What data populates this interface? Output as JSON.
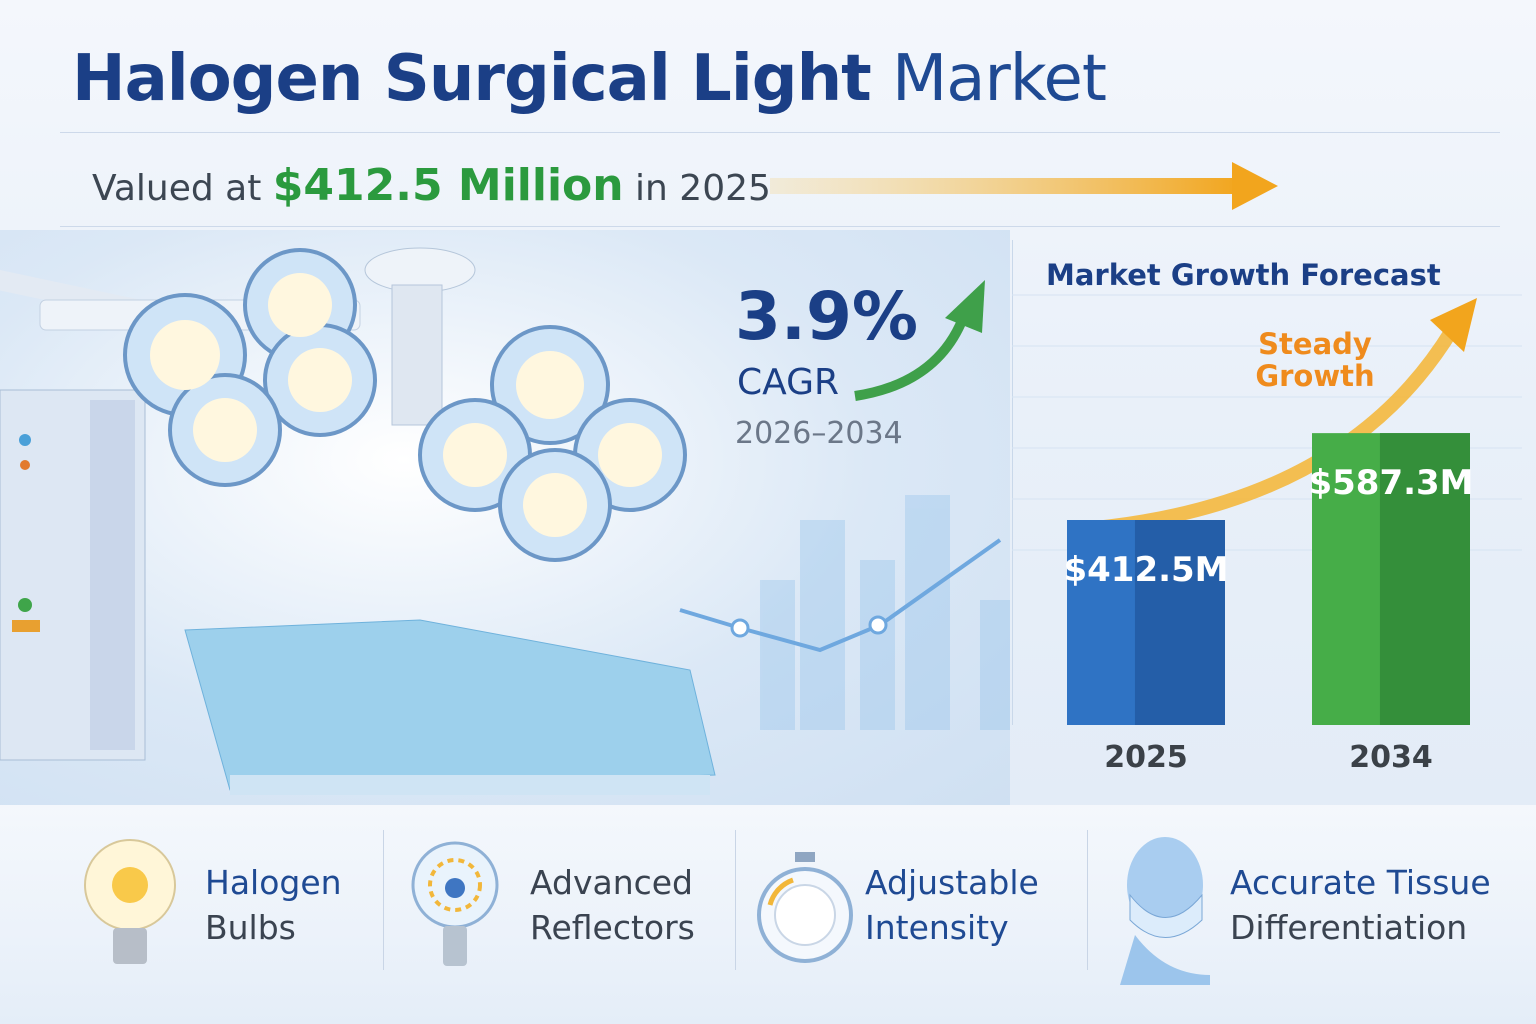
{
  "header": {
    "title_bold": "Halogen Surgical Light",
    "title_light": "Market"
  },
  "valuation": {
    "prefix": "Valued at",
    "amount": "$412.5 Million",
    "suffix": "in 2025"
  },
  "cagr": {
    "value": "3.9%",
    "label": "CAGR",
    "period": "2026–2034"
  },
  "chart_data": {
    "type": "bar",
    "title": "Market Growth Forecast",
    "categories": [
      "2025",
      "2034"
    ],
    "values": [
      412.5,
      587.3
    ],
    "unit": "USD Million",
    "data_labels": [
      "$412.5M",
      "$587.3M"
    ],
    "annotation": "Steady Growth",
    "colors": [
      "#2f73c4",
      "#46ad48"
    ],
    "ylim": [
      0,
      700
    ],
    "xlabel": "",
    "ylabel": ""
  },
  "features": [
    {
      "line1": "Halogen",
      "line2": "Bulbs",
      "icon": "light-bulb-icon"
    },
    {
      "line1": "Advanced",
      "line2": "Reflectors",
      "icon": "reflector-bulb-icon"
    },
    {
      "line1": "Adjustable",
      "line2": "Intensity",
      "icon": "dial-icon"
    },
    {
      "line1": "Accurate Tissue",
      "line2": "Differentiation",
      "icon": "surgeon-mask-icon"
    }
  ],
  "colors": {
    "navy": "#1b3f86",
    "green": "#2b9a3e",
    "orange": "#f2a51d"
  }
}
